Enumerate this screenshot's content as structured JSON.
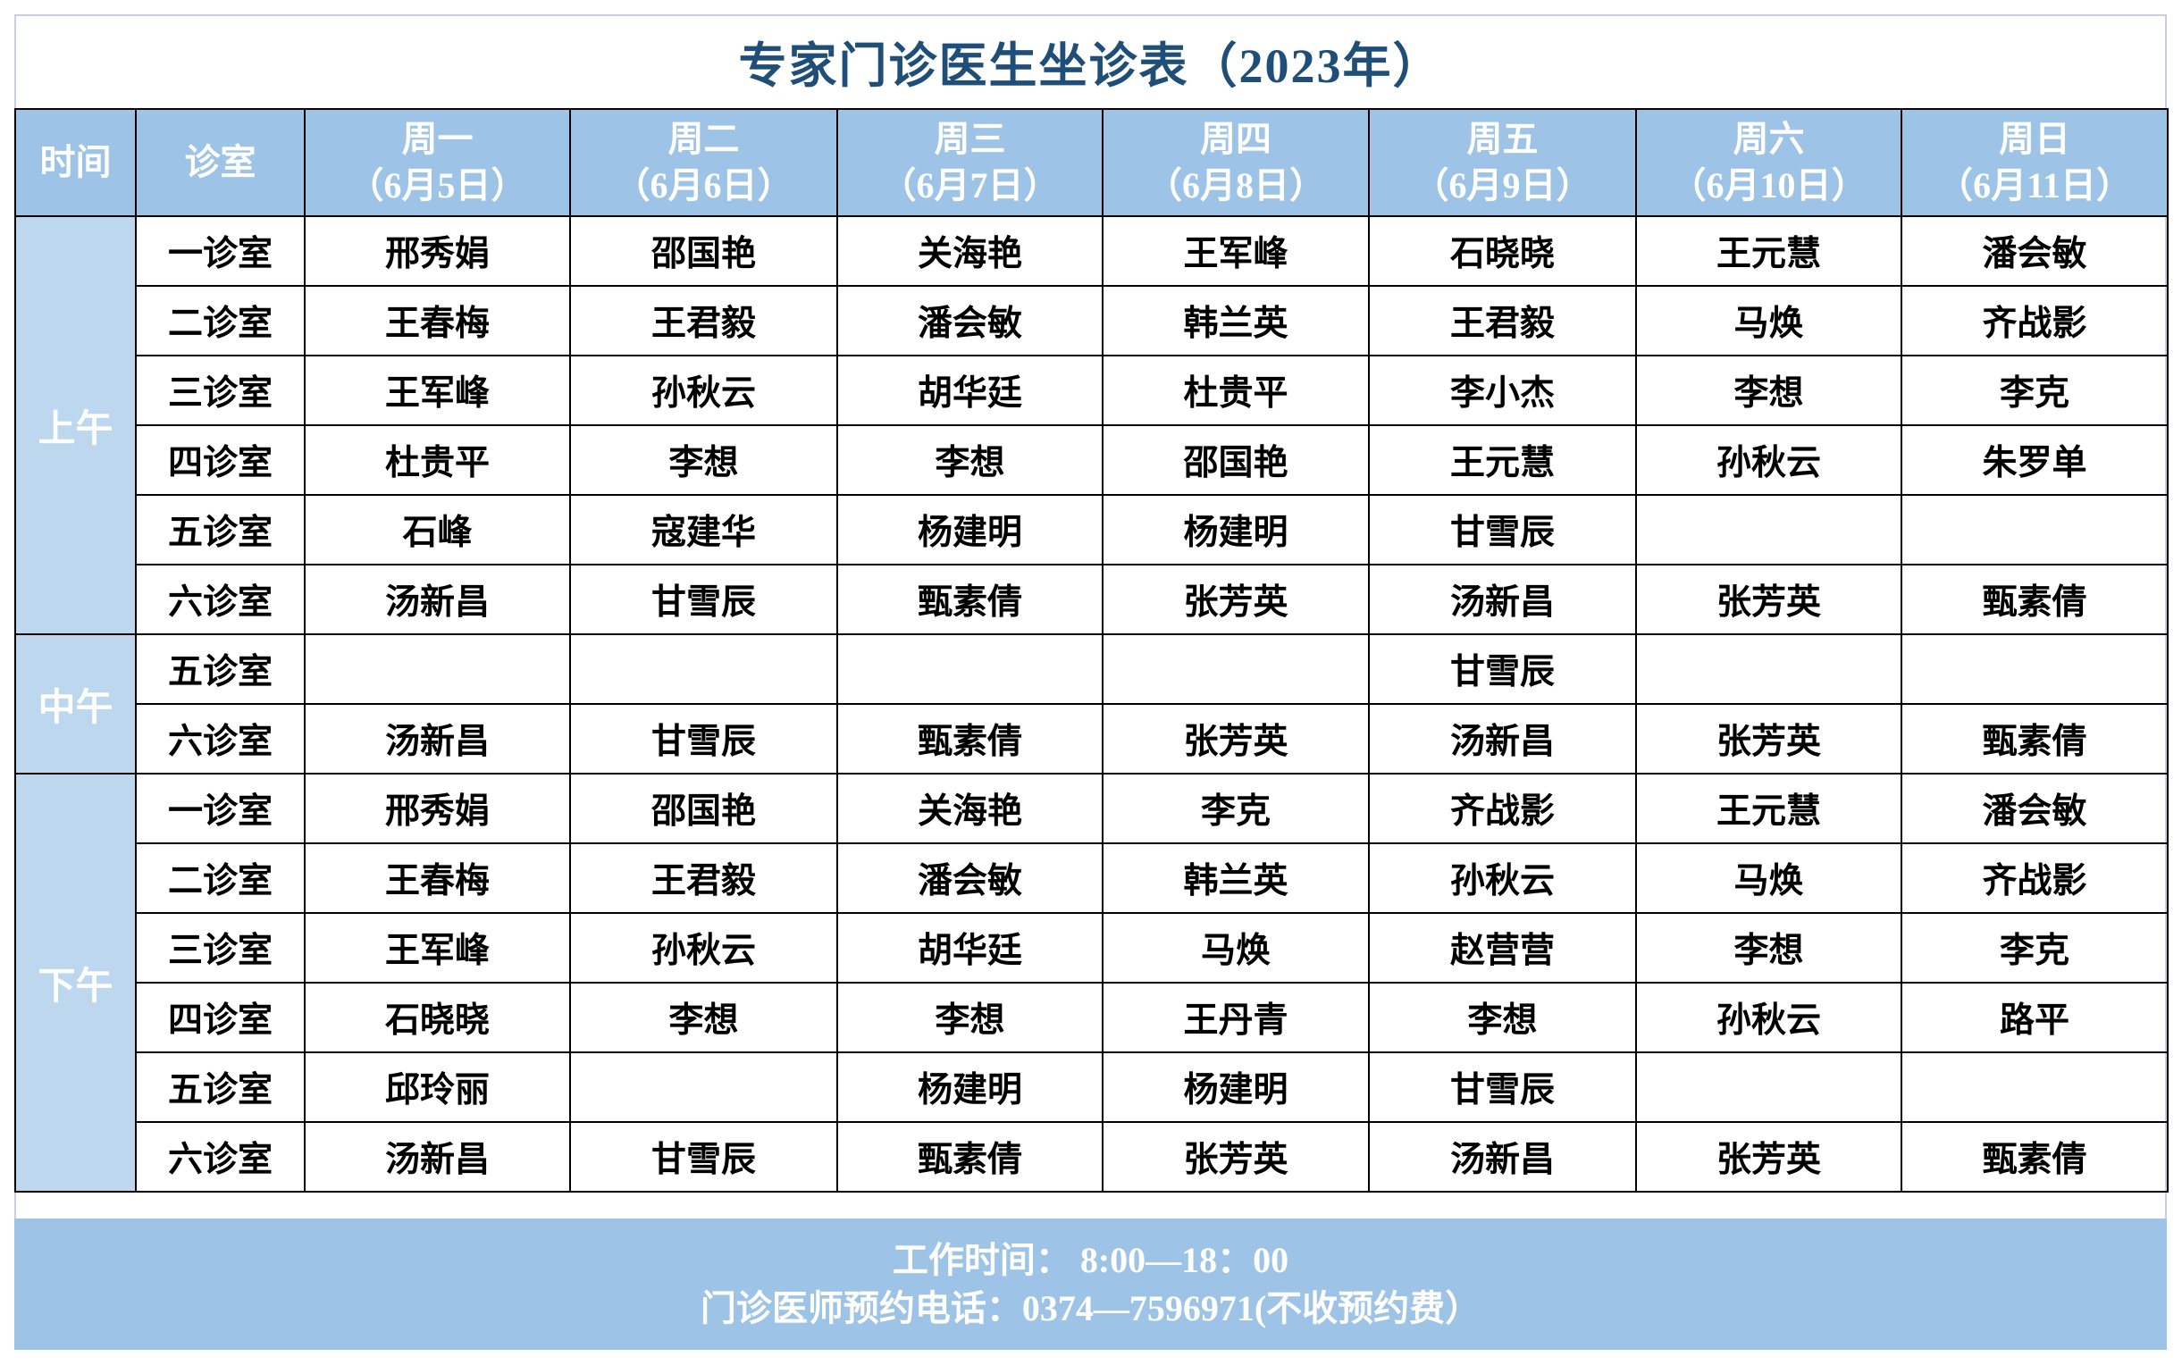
{
  "title": "专家门诊医生坐诊表（2023年）",
  "header": {
    "time": "时间",
    "room": "诊室",
    "days": [
      {
        "day": "周一",
        "date": "（6月5日）"
      },
      {
        "day": "周二",
        "date": "（6月6日）"
      },
      {
        "day": "周三",
        "date": "（6月7日）"
      },
      {
        "day": "周四",
        "date": "（6月8日）"
      },
      {
        "day": "周五",
        "date": "（6月9日）"
      },
      {
        "day": "周六",
        "date": "（6月10日）"
      },
      {
        "day": "周日",
        "date": "（6月11日）"
      }
    ]
  },
  "periods": [
    {
      "label": "上午",
      "rows": [
        {
          "room": "一诊室",
          "doctors": [
            "邢秀娟",
            "邵国艳",
            "关海艳",
            "王军峰",
            "石晓晓",
            "王元慧",
            "潘会敏"
          ]
        },
        {
          "room": "二诊室",
          "doctors": [
            "王春梅",
            "王君毅",
            "潘会敏",
            "韩兰英",
            "王君毅",
            "马焕",
            "齐战影"
          ]
        },
        {
          "room": "三诊室",
          "doctors": [
            "王军峰",
            "孙秋云",
            "胡华廷",
            "杜贵平",
            "李小杰",
            "李想",
            "李克"
          ]
        },
        {
          "room": "四诊室",
          "doctors": [
            "杜贵平",
            "李想",
            "李想",
            "邵国艳",
            "王元慧",
            "孙秋云",
            "朱罗单"
          ]
        },
        {
          "room": "五诊室",
          "doctors": [
            "石峰",
            "寇建华",
            "杨建明",
            "杨建明",
            "甘雪辰",
            "",
            ""
          ]
        },
        {
          "room": "六诊室",
          "doctors": [
            "汤新昌",
            "甘雪辰",
            "甄素倩",
            "张芳英",
            "汤新昌",
            "张芳英",
            "甄素倩"
          ]
        }
      ]
    },
    {
      "label": "中午",
      "rows": [
        {
          "room": "五诊室",
          "doctors": [
            "",
            "",
            "",
            "",
            "甘雪辰",
            "",
            ""
          ]
        },
        {
          "room": "六诊室",
          "doctors": [
            "汤新昌",
            "甘雪辰",
            "甄素倩",
            "张芳英",
            "汤新昌",
            "张芳英",
            "甄素倩"
          ]
        }
      ]
    },
    {
      "label": "下午",
      "rows": [
        {
          "room": "一诊室",
          "doctors": [
            "邢秀娟",
            "邵国艳",
            "关海艳",
            "李克",
            "齐战影",
            "王元慧",
            "潘会敏"
          ]
        },
        {
          "room": "二诊室",
          "doctors": [
            "王春梅",
            "王君毅",
            "潘会敏",
            "韩兰英",
            "孙秋云",
            "马焕",
            "齐战影"
          ]
        },
        {
          "room": "三诊室",
          "doctors": [
            "王军峰",
            "孙秋云",
            "胡华廷",
            "马焕",
            "赵营营",
            "李想",
            "李克"
          ]
        },
        {
          "room": "四诊室",
          "doctors": [
            "石晓晓",
            "李想",
            "李想",
            "王丹青",
            "李想",
            "孙秋云",
            "路平"
          ]
        },
        {
          "room": "五诊室",
          "doctors": [
            "邱玲丽",
            "",
            "杨建明",
            "杨建明",
            "甘雪辰",
            "",
            ""
          ]
        },
        {
          "room": "六诊室",
          "doctors": [
            "汤新昌",
            "甘雪辰",
            "甄素倩",
            "张芳英",
            "汤新昌",
            "张芳英",
            "甄素倩"
          ]
        }
      ]
    }
  ],
  "footer": {
    "hours": "工作时间：  8:00—18：00",
    "phone": "门诊医师预约电话：0374—7596971(不收预约费）"
  },
  "colors": {
    "title": "#1f4e79",
    "header_bg": "#9dc3e6",
    "period_bg": "#bdd7ee"
  }
}
